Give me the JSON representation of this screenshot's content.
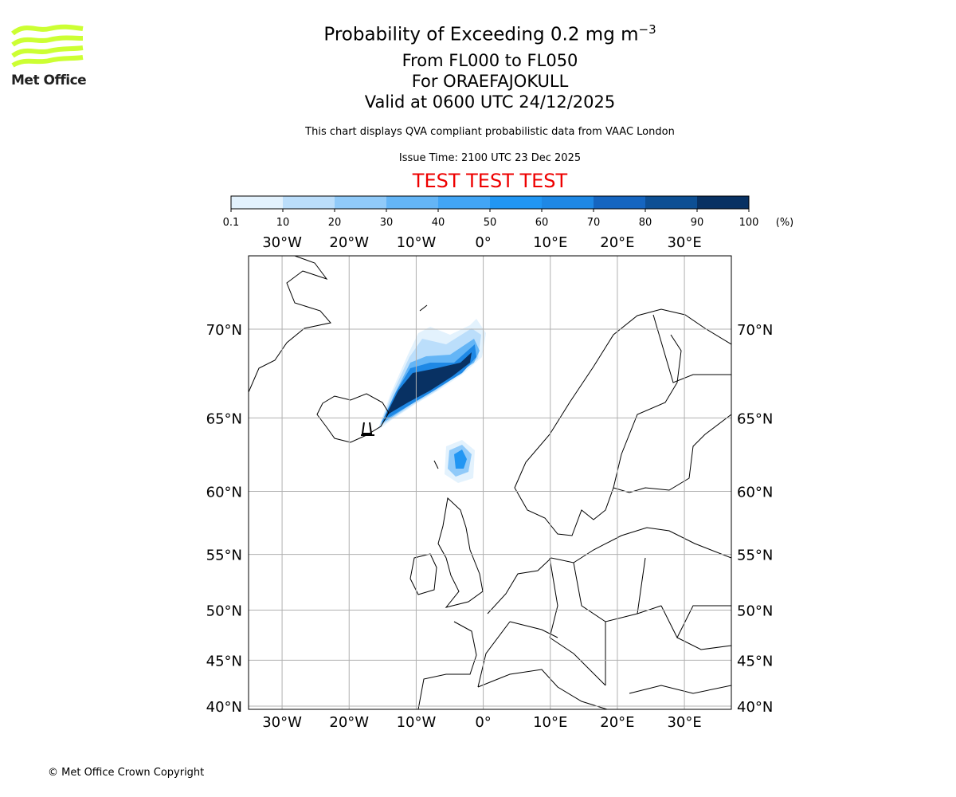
{
  "header": {
    "title": "Probability of Exceeding 0.2 mg m",
    "title_superscript": "−3",
    "flight_levels": "From FL000 to FL050",
    "volcano": "For ORAEFAJOKULL",
    "valid_time": "Valid at 0600 UTC 24/12/2025",
    "subtitle": "This chart displays QVA compliant probabilistic data from VAAC London",
    "issue_time": "Issue Time: 2100 UTC 23 Dec 2025",
    "test_banner": "TEST TEST TEST"
  },
  "logo": {
    "text": "Met Office"
  },
  "footer": {
    "copyright": "© Met Office Crown Copyright"
  },
  "chart_data": {
    "type": "heatmap",
    "title": "Probability of Exceeding 0.2 mg m−3",
    "colorbar": {
      "ticks": [
        "0.1",
        "10",
        "20",
        "30",
        "40",
        "50",
        "60",
        "70",
        "80",
        "90",
        "100"
      ],
      "unit": "(%)",
      "colors": [
        "#e3f2fd",
        "#bbdefb",
        "#90caf9",
        "#64b5f6",
        "#42a5f5",
        "#2196f3",
        "#1e88e5",
        "#1565c0",
        "#0d4f94",
        "#083163"
      ]
    },
    "lon_range": [
      -35,
      37
    ],
    "lat_range": [
      40,
      74
    ],
    "lon_ticks": [
      {
        "v": -30,
        "label": "30°W"
      },
      {
        "v": -20,
        "label": "20°W"
      },
      {
        "v": -10,
        "label": "10°W"
      },
      {
        "v": 0,
        "label": "0°"
      },
      {
        "v": 10,
        "label": "10°E"
      },
      {
        "v": 20,
        "label": "20°E"
      },
      {
        "v": 30,
        "label": "30°E"
      }
    ],
    "lat_ticks": [
      {
        "v": 70,
        "label": "70°N"
      },
      {
        "v": 65,
        "label": "65°N"
      },
      {
        "v": 60,
        "label": "60°N"
      },
      {
        "v": 55,
        "label": "55°N"
      },
      {
        "v": 50,
        "label": "50°N"
      },
      {
        "v": 45,
        "label": "45°N"
      },
      {
        "v": 40,
        "label": "40°N"
      }
    ],
    "grid": true,
    "source": {
      "name": "Oraefajokull",
      "lon": -16.6,
      "lat": 64.0
    },
    "plume_regions": [
      {
        "band": "0.1-10",
        "cells": "outer envelope, Iceland SE coast to ~1°E 70°N"
      },
      {
        "band": "90-100",
        "cells": "core, ~-14°E 65°N to ~-3°E 68.5°N"
      },
      {
        "band": "10-60",
        "cells": "detached patch near -3.5°E 62.5°N (Faroes)"
      }
    ]
  }
}
